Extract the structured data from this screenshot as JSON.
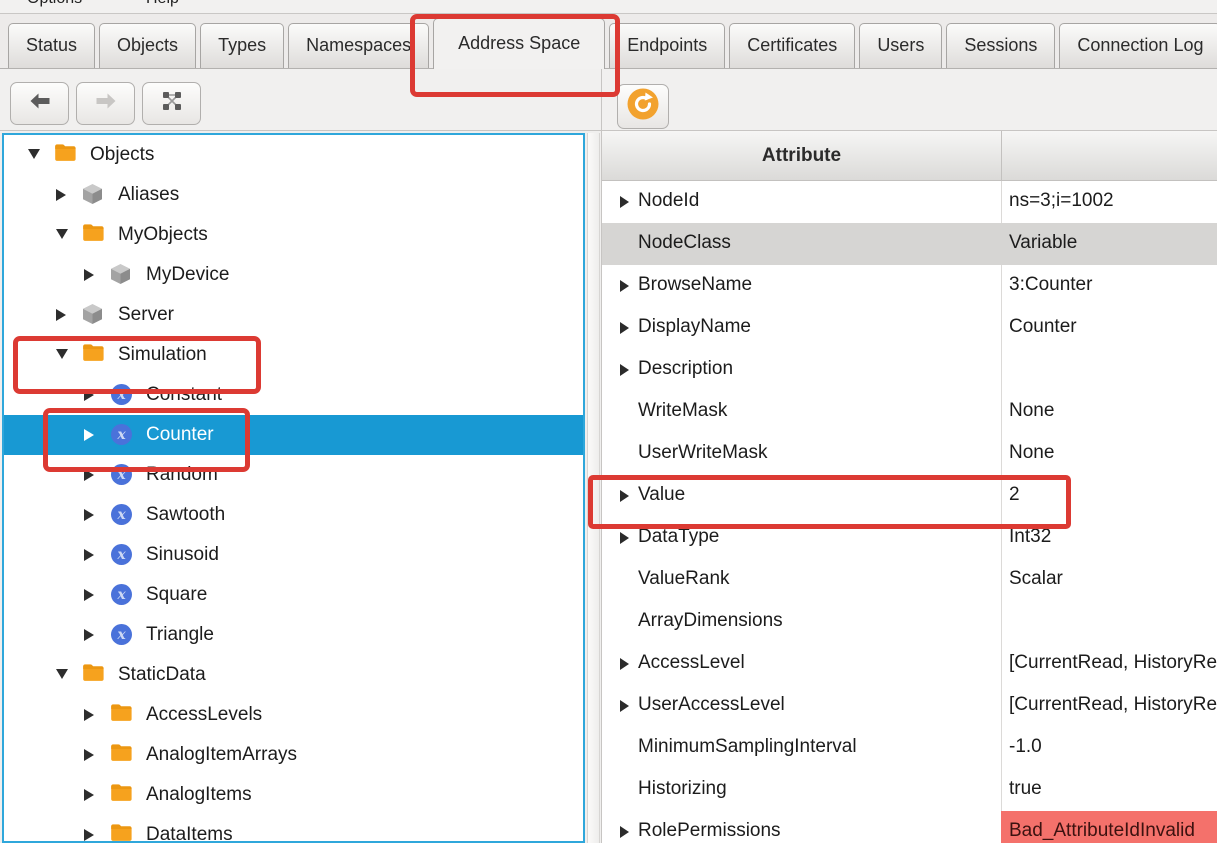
{
  "menu_bar": {
    "items": [
      "Options",
      "Help"
    ]
  },
  "tab_bar": {
    "tabs": [
      {
        "label": "Status",
        "selected": false
      },
      {
        "label": "Objects",
        "selected": false
      },
      {
        "label": "Types",
        "selected": false
      },
      {
        "label": "Namespaces",
        "selected": false
      },
      {
        "label": "Address Space",
        "selected": true,
        "annotated": true
      },
      {
        "label": "Endpoints",
        "selected": false
      },
      {
        "label": "Certificates",
        "selected": false
      },
      {
        "label": "Users",
        "selected": false
      },
      {
        "label": "Sessions",
        "selected": false
      },
      {
        "label": "Connection Log",
        "selected": false
      }
    ]
  },
  "left_toolbar": {
    "buttons": [
      {
        "icon": "arrow-left-icon",
        "enabled": true
      },
      {
        "icon": "arrow-right-icon",
        "enabled": false
      },
      {
        "icon": "node-graph-icon",
        "enabled": true
      }
    ]
  },
  "right_toolbar": {
    "buttons": [
      {
        "icon": "refresh-icon",
        "enabled": true
      }
    ]
  },
  "tree": {
    "selected_item": "Counter",
    "items": [
      {
        "label": "Objects",
        "level": 0,
        "state": "expanded",
        "icon": "folder"
      },
      {
        "label": "Aliases",
        "level": 1,
        "state": "collapsed",
        "icon": "cube"
      },
      {
        "label": "MyObjects",
        "level": 1,
        "state": "expanded",
        "icon": "folder"
      },
      {
        "label": "MyDevice",
        "level": 2,
        "state": "collapsed",
        "icon": "cube"
      },
      {
        "label": "Server",
        "level": 1,
        "state": "collapsed",
        "icon": "cube"
      },
      {
        "label": "Simulation",
        "level": 1,
        "state": "expanded",
        "icon": "folder",
        "annotated": true
      },
      {
        "label": "Constant",
        "level": 2,
        "state": "collapsed",
        "icon": "variable"
      },
      {
        "label": "Counter",
        "level": 2,
        "state": "collapsed",
        "icon": "variable",
        "selected": true,
        "annotated": true
      },
      {
        "label": "Random",
        "level": 2,
        "state": "collapsed",
        "icon": "variable"
      },
      {
        "label": "Sawtooth",
        "level": 2,
        "state": "collapsed",
        "icon": "variable"
      },
      {
        "label": "Sinusoid",
        "level": 2,
        "state": "collapsed",
        "icon": "variable"
      },
      {
        "label": "Square",
        "level": 2,
        "state": "collapsed",
        "icon": "variable"
      },
      {
        "label": "Triangle",
        "level": 2,
        "state": "collapsed",
        "icon": "variable"
      },
      {
        "label": "StaticData",
        "level": 1,
        "state": "expanded",
        "icon": "folder"
      },
      {
        "label": "AccessLevels",
        "level": 2,
        "state": "collapsed",
        "icon": "folder"
      },
      {
        "label": "AnalogItemArrays",
        "level": 2,
        "state": "collapsed",
        "icon": "folder"
      },
      {
        "label": "AnalogItems",
        "level": 2,
        "state": "collapsed",
        "icon": "folder"
      },
      {
        "label": "DataItems",
        "level": 2,
        "state": "collapsed",
        "icon": "folder"
      }
    ]
  },
  "attribute_table": {
    "columns": [
      "Attribute",
      ""
    ],
    "rows": [
      {
        "attribute": "NodeId",
        "value": "ns=3;i=1002",
        "expandable": true,
        "row_style": "normal"
      },
      {
        "attribute": "NodeClass",
        "value": "Variable",
        "expandable": false,
        "row_style": "gray"
      },
      {
        "attribute": "BrowseName",
        "value": "3:Counter",
        "expandable": true,
        "row_style": "normal"
      },
      {
        "attribute": "DisplayName",
        "value": "Counter",
        "expandable": true,
        "row_style": "normal"
      },
      {
        "attribute": "Description",
        "value": "",
        "expandable": true,
        "row_style": "normal"
      },
      {
        "attribute": "WriteMask",
        "value": "None",
        "expandable": false,
        "row_style": "normal"
      },
      {
        "attribute": "UserWriteMask",
        "value": "None",
        "expandable": false,
        "row_style": "normal"
      },
      {
        "attribute": "Value",
        "value": "2",
        "expandable": true,
        "row_style": "normal",
        "annotated": true
      },
      {
        "attribute": "DataType",
        "value": "Int32",
        "expandable": true,
        "row_style": "normal"
      },
      {
        "attribute": "ValueRank",
        "value": "Scalar",
        "expandable": false,
        "row_style": "normal"
      },
      {
        "attribute": "ArrayDimensions",
        "value": "",
        "expandable": false,
        "row_style": "normal"
      },
      {
        "attribute": "AccessLevel",
        "value": "[CurrentRead, HistoryRead]",
        "expandable": true,
        "row_style": "normal"
      },
      {
        "attribute": "UserAccessLevel",
        "value": "[CurrentRead, HistoryRead]",
        "expandable": true,
        "row_style": "normal"
      },
      {
        "attribute": "MinimumSamplingInterval",
        "value": "-1.0",
        "expandable": false,
        "row_style": "normal"
      },
      {
        "attribute": "Historizing",
        "value": "true",
        "expandable": false,
        "row_style": "normal"
      },
      {
        "attribute": "RolePermissions",
        "value": "Bad_AttributeIdInvalid",
        "expandable": true,
        "row_style": "normal",
        "value_style": "error"
      }
    ]
  },
  "annotations": {
    "color": "#dc3a33",
    "highlighted": [
      "Address Space tab",
      "Simulation tree node",
      "Counter tree node",
      "Value attribute row"
    ]
  },
  "colors": {
    "selection_blue": "#1899d3",
    "tree_focus_border": "#2fa7db",
    "folder_orange": "#f6a21e",
    "variable_icon_blue": "#4a72da",
    "refresh_orange": "#f2a22e",
    "error_cell_bg": "#f4716b",
    "gray_row": "#d6d5d3"
  }
}
